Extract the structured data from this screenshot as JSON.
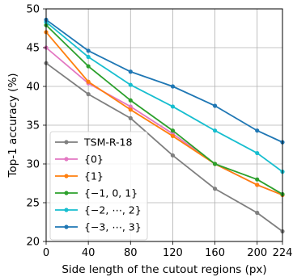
{
  "chart_data": {
    "type": "line",
    "title": "",
    "xlabel": "Side length of the cutout regions (px)",
    "ylabel": "Top-1 accuracy (%)",
    "x": [
      0,
      40,
      80,
      120,
      160,
      200,
      224
    ],
    "xticks": [
      0,
      40,
      80,
      120,
      160,
      200,
      224
    ],
    "yticks": [
      20,
      25,
      30,
      35,
      40,
      45,
      50
    ],
    "xlim": [
      0,
      224
    ],
    "ylim": [
      20,
      50
    ],
    "grid": true,
    "legend_position": "lower-left",
    "series": [
      {
        "name": "TSM-R-18",
        "color": "#7f7f7f",
        "values": [
          43.0,
          39.0,
          35.9,
          31.1,
          26.8,
          23.7,
          21.3
        ]
      },
      {
        "name": "{0}",
        "color": "#e377c2",
        "values": [
          45.0,
          40.4,
          37.4,
          33.9,
          30.0,
          27.3,
          26.0
        ]
      },
      {
        "name": "{1}",
        "color": "#ff7f0e",
        "values": [
          47.0,
          40.6,
          37.0,
          33.6,
          30.0,
          27.3,
          26.0
        ]
      },
      {
        "name": "{−1, 0, 1}",
        "color": "#2ca02c",
        "values": [
          47.9,
          42.6,
          38.2,
          34.3,
          30.0,
          28.0,
          26.1
        ]
      },
      {
        "name": "{−2, ⋯, 2}",
        "color": "#17becf",
        "values": [
          48.3,
          43.8,
          40.2,
          37.4,
          34.3,
          31.4,
          29.0
        ]
      },
      {
        "name": "{−3, ⋯, 3}",
        "color": "#1f77b4",
        "values": [
          48.6,
          44.6,
          41.9,
          40.0,
          37.5,
          34.3,
          32.8
        ]
      }
    ]
  }
}
